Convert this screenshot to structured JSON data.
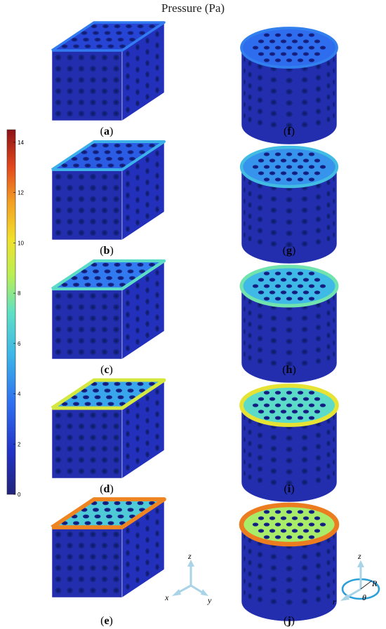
{
  "title": "Pressure (Pa)",
  "colorbar": {
    "min": 0,
    "max": 14.5,
    "ticks": [
      "0",
      "2",
      "4",
      "6",
      "8",
      "10",
      "12",
      "14"
    ],
    "tick_values": [
      0,
      2,
      4,
      6,
      8,
      10,
      12,
      14
    ]
  },
  "panels": [
    {
      "id": "a",
      "open": "(",
      "letter": "a",
      "close": ")",
      "shape": "box",
      "level": 0.12
    },
    {
      "id": "b",
      "open": "(",
      "letter": "b",
      "close": ")",
      "shape": "box",
      "level": 0.22
    },
    {
      "id": "c",
      "open": "(",
      "letter": "c",
      "close": ")",
      "shape": "box",
      "level": 0.34
    },
    {
      "id": "d",
      "open": "(",
      "letter": "d",
      "close": ")",
      "shape": "box",
      "level": 0.5
    },
    {
      "id": "e",
      "open": "(",
      "letter": "e",
      "close": ")",
      "shape": "box",
      "level": 0.68
    },
    {
      "id": "f",
      "open": "(",
      "letter": "f",
      "close": ")",
      "shape": "cylinder",
      "level": 0.16
    },
    {
      "id": "g",
      "open": "(",
      "letter": "g",
      "close": ")",
      "shape": "cylinder",
      "level": 0.28
    },
    {
      "id": "h",
      "open": "(",
      "letter": "h",
      "close": ")",
      "shape": "cylinder",
      "level": 0.4
    },
    {
      "id": "i",
      "open": "(",
      "letter": "i",
      "close": ")",
      "shape": "cylinder",
      "level": 0.56
    },
    {
      "id": "j",
      "open": "(",
      "letter": "j",
      "close": ")",
      "shape": "cylinder",
      "level": 0.72
    }
  ],
  "cartesian_axes": {
    "x": "x",
    "y": "y",
    "z": "z"
  },
  "cylindrical_axes": {
    "z": "z",
    "r": "r",
    "R": "R",
    "theta": "θ"
  },
  "colors": {
    "axis_arrow": "#a9d3e6",
    "cyl_ring": "#2a9fd8"
  }
}
